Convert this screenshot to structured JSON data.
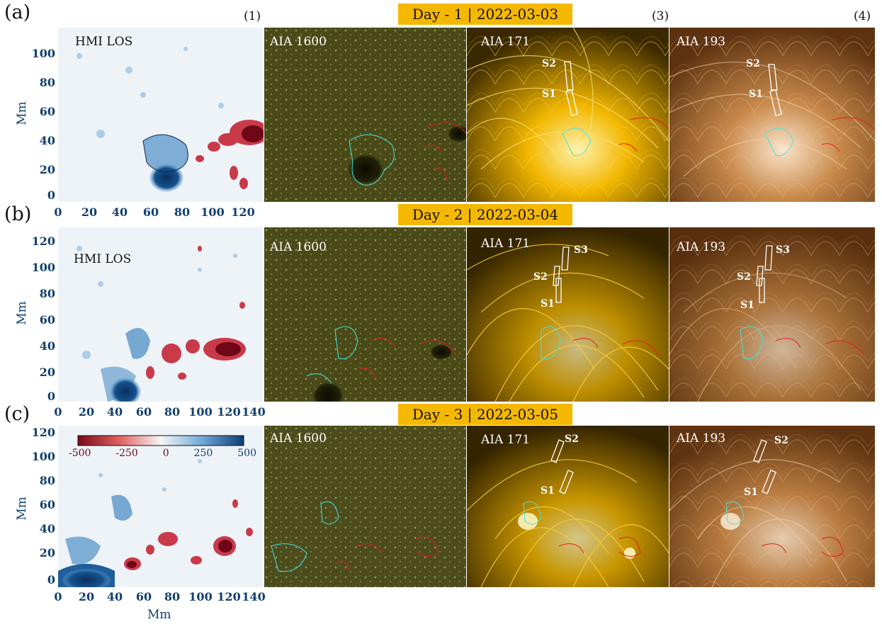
{
  "rows": [
    {
      "label": "(a)",
      "day": "Day - 1",
      "date": "2022-03-03",
      "hmi_title": "HMI LOS",
      "yticks": [
        "100",
        "80",
        "60",
        "40",
        "20",
        "0"
      ],
      "xticks": [
        "0",
        "20",
        "40",
        "60",
        "80",
        "100",
        "120"
      ],
      "slits_171": [
        "S2",
        "S1"
      ],
      "slits_193": [
        "S2",
        "S1"
      ]
    },
    {
      "label": "(b)",
      "day": "Day - 2",
      "date": "2022-03-04",
      "hmi_title": "HMI LOS",
      "yticks": [
        "120",
        "100",
        "80",
        "60",
        "40",
        "20",
        "0"
      ],
      "xticks": [
        "0",
        "20",
        "40",
        "60",
        "80",
        "100",
        "120",
        "140"
      ],
      "slits_171": [
        "S3",
        "S2",
        "S1"
      ],
      "slits_193": [
        "S3",
        "S2",
        "S1"
      ]
    },
    {
      "label": "(c)",
      "day": "Day - 3",
      "date": "2022-03-05",
      "hmi_title": "",
      "yticks": [
        "120",
        "100",
        "80",
        "60",
        "40",
        "20",
        "0"
      ],
      "xticks": [
        "0",
        "20",
        "40",
        "60",
        "80",
        "100",
        "120",
        "140"
      ],
      "slits_171": [
        "S2",
        "S1"
      ],
      "slits_193": [
        "S2",
        "S1"
      ]
    }
  ],
  "column_numbers": [
    "(1)",
    "(3)",
    "(4)"
  ],
  "panel_titles": {
    "aia1600": "AIA 1600",
    "aia171": "AIA 171",
    "aia193": "AIA 193"
  },
  "separator": "|",
  "axis_titles": {
    "y": "Mm",
    "x": "Mm"
  },
  "colorbar": {
    "ticks": [
      "-500",
      "-250",
      "0",
      "250",
      "500"
    ],
    "colors": {
      "negative": "#8b0a1a",
      "zero": "#f4f4f4",
      "positive": "#0d3d73"
    }
  },
  "colors": {
    "banner": "#f5b800",
    "contour_positive": "#3fe6e6",
    "contour_negative": "#e51c1c",
    "aia1600": "#5a5a1e",
    "aia171": "#e0a200",
    "aia193": "#b57a3e",
    "axis": "#12406e"
  }
}
